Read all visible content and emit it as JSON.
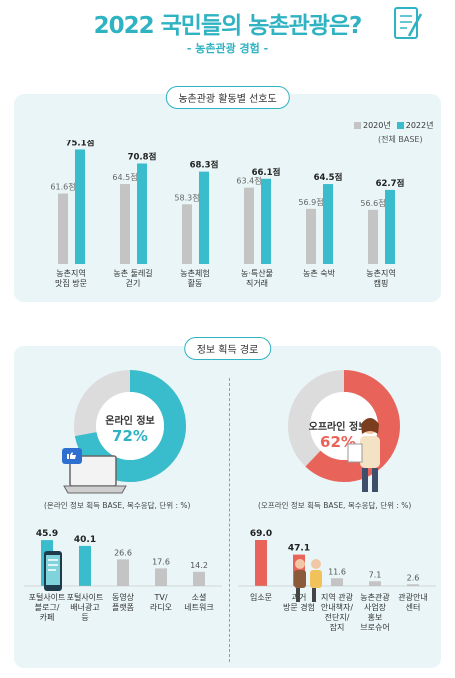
{
  "header": {
    "title": "2022 국민들의 농촌관광은?",
    "subtitle": "- 농촌관광 경험 -"
  },
  "colors": {
    "teal": "#39bccb",
    "gray": "#c4c4c4",
    "red": "#e8645a",
    "panel": "#e9f5f6"
  },
  "section1": {
    "heading": "농촌관광 활동별 선호도",
    "legend_2020": "2020년",
    "legend_2022": "2022년",
    "base_note": "(전체 BASE)"
  },
  "section2": {
    "heading": "정보 획득 경로",
    "online_label": "온라인 정보",
    "online_pct": "72%",
    "offline_label": "오프라인 정보",
    "offline_pct": "62%",
    "online_note": "(온라인 정보 획득 BASE, 복수응답, 단위 : %)",
    "offline_note": "(오프라인 정보 획득 BASE, 복수응답, 단위 : %)"
  },
  "chart_data": [
    {
      "type": "bar",
      "title": "농촌관광 활동별 선호도",
      "categories": [
        [
          "농촌지역",
          "맛집 방문"
        ],
        [
          "농촌 둘레길",
          "걷기"
        ],
        [
          "농촌체험",
          "활동"
        ],
        [
          "농·특산물",
          "직거래"
        ],
        [
          "농촌 숙박"
        ],
        [
          "농촌지역",
          "캠핑"
        ]
      ],
      "series": [
        {
          "name": "2020년",
          "values": [
            61.6,
            64.5,
            58.3,
            63.4,
            56.9,
            56.6
          ],
          "labels": [
            "61.6점",
            "64.5점",
            "58.3점",
            "63.4점",
            "56.9점",
            "56.6점"
          ],
          "color": "#c4c4c4"
        },
        {
          "name": "2022년",
          "values": [
            75.1,
            70.8,
            68.3,
            66.1,
            64.5,
            62.7
          ],
          "labels": [
            "75.1점",
            "70.8점",
            "68.3점",
            "66.1점",
            "64.5점",
            "62.7점"
          ],
          "color": "#39bccb"
        }
      ],
      "ylim": [
        40,
        78
      ]
    },
    {
      "type": "pie",
      "title": "온라인 정보",
      "values": [
        72,
        28
      ],
      "labels": [
        "온라인 정보",
        ""
      ],
      "colors": [
        "#39bccb",
        "#dcdcdc"
      ]
    },
    {
      "type": "pie",
      "title": "오프라인 정보",
      "values": [
        62,
        38
      ],
      "labels": [
        "오프라인 정보",
        ""
      ],
      "colors": [
        "#e8645a",
        "#dcdcdc"
      ]
    },
    {
      "type": "bar",
      "title": "",
      "categories": [
        [
          "포털사이트",
          "블로그/",
          "카페"
        ],
        [
          "포털사이트",
          "배너광고",
          "등"
        ],
        [
          "동영상",
          "플랫폼"
        ],
        [
          "TV/",
          "라디오"
        ],
        [
          "소셜",
          "네트워크"
        ]
      ],
      "values": [
        45.9,
        40.1,
        26.6,
        17.6,
        14.2
      ],
      "labels": [
        "45.9",
        "40.1",
        "26.6",
        "17.6",
        "14.2"
      ],
      "colors": [
        "#39bccb",
        "#39bccb",
        "#c4c4c4",
        "#c4c4c4",
        "#c4c4c4"
      ],
      "ylim": [
        0,
        50
      ]
    },
    {
      "type": "bar",
      "title": "",
      "categories": [
        [
          "입소문"
        ],
        [
          "과거",
          "방문 경험"
        ],
        [
          "지역 관광",
          "안내책자/",
          "전단지/",
          "잡지"
        ],
        [
          "농촌관광",
          "사업장",
          "홍보",
          "브로슈어"
        ],
        [
          "관광안내",
          "센터"
        ]
      ],
      "values": [
        69.0,
        47.1,
        11.6,
        7.1,
        2.6
      ],
      "labels": [
        "69.0",
        "47.1",
        "11.6",
        "7.1",
        "2.6"
      ],
      "colors": [
        "#e8645a",
        "#e8645a",
        "#c4c4c4",
        "#c4c4c4",
        "#c4c4c4"
      ],
      "ylim": [
        0,
        75
      ]
    }
  ]
}
